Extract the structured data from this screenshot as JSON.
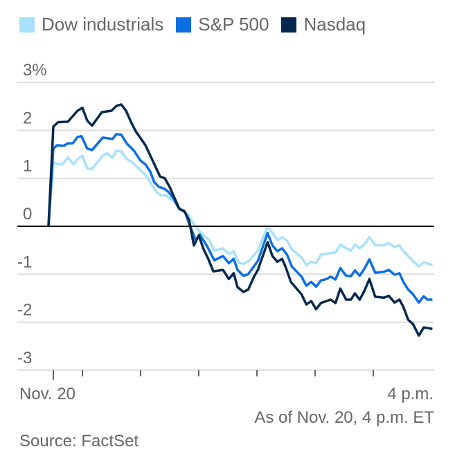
{
  "chart_data": {
    "type": "line",
    "title": "",
    "xlabel": "",
    "ylabel": "",
    "x_unit": "minutes since 9:30 a.m. ET",
    "xlim": [
      -5,
      391
    ],
    "ylim": [
      -3,
      3
    ],
    "y_ticks": [
      {
        "value": 3,
        "label": "3%"
      },
      {
        "value": 2,
        "label": "2"
      },
      {
        "value": 1,
        "label": "1"
      },
      {
        "value": 0,
        "label": "0"
      },
      {
        "value": -1,
        "label": "-1"
      },
      {
        "value": -2,
        "label": "-2"
      },
      {
        "value": -3,
        "label": "-3"
      }
    ],
    "x_ticks": [
      0,
      30,
      90,
      150,
      210,
      270,
      330
    ],
    "x_tick_labels": [
      {
        "value": 0,
        "label": "Nov. 20",
        "align": "start"
      },
      {
        "value": 391,
        "label": "4 p.m.",
        "align": "end"
      }
    ],
    "grid": true,
    "legend": "top-left",
    "series": [
      {
        "name": "Dow industrials",
        "color": "#a8e1fc",
        "points": [
          [
            -5,
            0
          ],
          [
            0,
            1.33
          ],
          [
            4,
            1.3
          ],
          [
            9,
            1.29
          ],
          [
            15,
            1.43
          ],
          [
            21,
            1.29
          ],
          [
            25,
            1.4
          ],
          [
            30,
            1.47
          ],
          [
            35,
            1.2
          ],
          [
            40,
            1.2
          ],
          [
            51,
            1.47
          ],
          [
            56,
            1.52
          ],
          [
            61,
            1.43
          ],
          [
            65,
            1.58
          ],
          [
            70,
            1.56
          ],
          [
            76,
            1.4
          ],
          [
            81,
            1.34
          ],
          [
            96,
            1.05
          ],
          [
            106,
            0.72
          ],
          [
            111,
            0.65
          ],
          [
            116,
            0.65
          ],
          [
            124,
            0.53
          ],
          [
            131,
            0.35
          ],
          [
            139,
            0.25
          ],
          [
            144,
            0.07
          ],
          [
            150,
            -0.09
          ],
          [
            154,
            -0.17
          ],
          [
            161,
            -0.29
          ],
          [
            166,
            -0.51
          ],
          [
            175,
            -0.46
          ],
          [
            181,
            -0.58
          ],
          [
            186,
            -0.52
          ],
          [
            191,
            -0.75
          ],
          [
            196,
            -0.79
          ],
          [
            202,
            -0.72
          ],
          [
            211,
            -0.51
          ],
          [
            221,
            0.0
          ],
          [
            226,
            -0.14
          ],
          [
            231,
            -0.29
          ],
          [
            236,
            -0.23
          ],
          [
            241,
            -0.3
          ],
          [
            246,
            -0.48
          ],
          [
            256,
            -0.65
          ],
          [
            261,
            -0.81
          ],
          [
            266,
            -0.74
          ],
          [
            271,
            -0.77
          ],
          [
            276,
            -0.59
          ],
          [
            286,
            -0.56
          ],
          [
            291,
            -0.55
          ],
          [
            296,
            -0.38
          ],
          [
            302,
            -0.46
          ],
          [
            307,
            -0.51
          ],
          [
            311,
            -0.38
          ],
          [
            316,
            -0.46
          ],
          [
            321,
            -0.38
          ],
          [
            326,
            -0.23
          ],
          [
            332,
            -0.39
          ],
          [
            341,
            -0.4
          ],
          [
            346,
            -0.35
          ],
          [
            352,
            -0.43
          ],
          [
            357,
            -0.4
          ],
          [
            361,
            -0.52
          ],
          [
            366,
            -0.62
          ],
          [
            371,
            -0.72
          ],
          [
            377,
            -0.84
          ],
          [
            382,
            -0.75
          ],
          [
            391,
            -0.81
          ]
        ]
      },
      {
        "name": "S&P 500",
        "color": "#0b6fe1",
        "points": [
          [
            -5,
            0
          ],
          [
            0,
            1.62
          ],
          [
            4,
            1.69
          ],
          [
            11,
            1.68
          ],
          [
            15,
            1.73
          ],
          [
            20,
            1.73
          ],
          [
            25,
            1.86
          ],
          [
            29,
            1.88
          ],
          [
            35,
            1.62
          ],
          [
            40,
            1.59
          ],
          [
            51,
            1.85
          ],
          [
            61,
            1.82
          ],
          [
            65,
            1.92
          ],
          [
            70,
            1.91
          ],
          [
            76,
            1.72
          ],
          [
            83,
            1.58
          ],
          [
            90,
            1.37
          ],
          [
            95,
            1.29
          ],
          [
            100,
            1.14
          ],
          [
            104,
            0.92
          ],
          [
            109,
            0.82
          ],
          [
            114,
            0.79
          ],
          [
            119,
            0.71
          ],
          [
            124,
            0.58
          ],
          [
            129,
            0.39
          ],
          [
            136,
            0.29
          ],
          [
            140,
            0.06
          ],
          [
            147,
            -0.3
          ],
          [
            151,
            -0.17
          ],
          [
            159,
            -0.43
          ],
          [
            166,
            -0.71
          ],
          [
            175,
            -0.62
          ],
          [
            181,
            -0.77
          ],
          [
            186,
            -0.68
          ],
          [
            190,
            -0.91
          ],
          [
            196,
            -1.03
          ],
          [
            201,
            -1.0
          ],
          [
            211,
            -0.72
          ],
          [
            221,
            -0.14
          ],
          [
            226,
            -0.4
          ],
          [
            231,
            -0.52
          ],
          [
            236,
            -0.46
          ],
          [
            241,
            -0.59
          ],
          [
            246,
            -0.84
          ],
          [
            256,
            -1.05
          ],
          [
            261,
            -1.24
          ],
          [
            266,
            -1.16
          ],
          [
            271,
            -1.26
          ],
          [
            276,
            -1.13
          ],
          [
            282,
            -1.1
          ],
          [
            286,
            -1.05
          ],
          [
            291,
            -1.11
          ],
          [
            296,
            -0.87
          ],
          [
            302,
            -1.03
          ],
          [
            307,
            -1.04
          ],
          [
            311,
            -0.92
          ],
          [
            316,
            -1.03
          ],
          [
            321,
            -0.88
          ],
          [
            326,
            -0.69
          ],
          [
            332,
            -0.97
          ],
          [
            341,
            -0.95
          ],
          [
            346,
            -0.91
          ],
          [
            352,
            -1.01
          ],
          [
            357,
            -0.98
          ],
          [
            361,
            -1.16
          ],
          [
            366,
            -1.32
          ],
          [
            371,
            -1.42
          ],
          [
            377,
            -1.59
          ],
          [
            382,
            -1.46
          ],
          [
            386,
            -1.53
          ],
          [
            391,
            -1.53
          ]
        ]
      },
      {
        "name": "Nasdaq",
        "color": "#06284e",
        "points": [
          [
            -5,
            0
          ],
          [
            0,
            2.08
          ],
          [
            5,
            2.17
          ],
          [
            15,
            2.18
          ],
          [
            25,
            2.41
          ],
          [
            30,
            2.47
          ],
          [
            35,
            2.2
          ],
          [
            40,
            2.1
          ],
          [
            50,
            2.38
          ],
          [
            60,
            2.41
          ],
          [
            65,
            2.51
          ],
          [
            70,
            2.54
          ],
          [
            75,
            2.41
          ],
          [
            80,
            2.18
          ],
          [
            85,
            1.98
          ],
          [
            95,
            1.69
          ],
          [
            105,
            1.26
          ],
          [
            110,
            1.04
          ],
          [
            115,
            1.0
          ],
          [
            120,
            0.82
          ],
          [
            130,
            0.36
          ],
          [
            135,
            0.32
          ],
          [
            140,
            0.13
          ],
          [
            145,
            -0.4
          ],
          [
            150,
            -0.19
          ],
          [
            155,
            -0.48
          ],
          [
            160,
            -0.69
          ],
          [
            165,
            -0.94
          ],
          [
            175,
            -0.91
          ],
          [
            181,
            -1.1
          ],
          [
            186,
            -0.98
          ],
          [
            190,
            -1.27
          ],
          [
            196,
            -1.37
          ],
          [
            201,
            -1.32
          ],
          [
            207,
            -1.05
          ],
          [
            211,
            -0.91
          ],
          [
            221,
            -0.33
          ],
          [
            226,
            -0.62
          ],
          [
            231,
            -0.74
          ],
          [
            236,
            -0.68
          ],
          [
            240,
            -0.87
          ],
          [
            245,
            -1.16
          ],
          [
            256,
            -1.42
          ],
          [
            261,
            -1.63
          ],
          [
            266,
            -1.56
          ],
          [
            271,
            -1.73
          ],
          [
            276,
            -1.6
          ],
          [
            286,
            -1.53
          ],
          [
            291,
            -1.6
          ],
          [
            296,
            -1.3
          ],
          [
            302,
            -1.53
          ],
          [
            307,
            -1.53
          ],
          [
            311,
            -1.4
          ],
          [
            316,
            -1.53
          ],
          [
            321,
            -1.34
          ],
          [
            326,
            -1.1
          ],
          [
            332,
            -1.47
          ],
          [
            341,
            -1.49
          ],
          [
            346,
            -1.45
          ],
          [
            352,
            -1.59
          ],
          [
            357,
            -1.53
          ],
          [
            361,
            -1.68
          ],
          [
            366,
            -1.95
          ],
          [
            371,
            -2.04
          ],
          [
            377,
            -2.28
          ],
          [
            382,
            -2.11
          ],
          [
            391,
            -2.14
          ]
        ]
      }
    ]
  },
  "footer": {
    "as_of": "As of Nov. 20, 4 p.m. ET",
    "source": "Source: FactSet"
  }
}
